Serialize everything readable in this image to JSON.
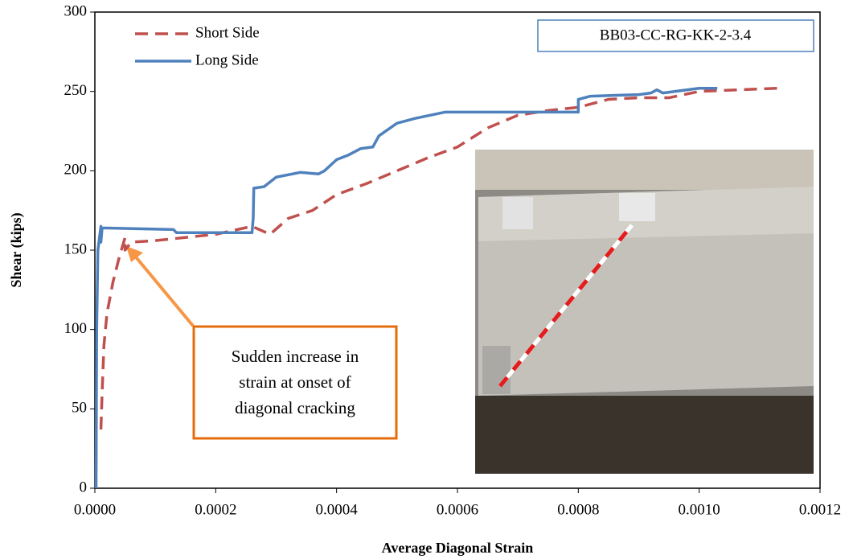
{
  "chart_data": {
    "type": "line",
    "x_label": "Average Diagonal Strain",
    "y_label": "Shear (kips)",
    "xlim": [
      0,
      0.0012
    ],
    "ylim": [
      0,
      300
    ],
    "xticks": [
      {
        "value": 0,
        "label": "0.0000"
      },
      {
        "value": 0.0002,
        "label": "0.0002"
      },
      {
        "value": 0.0004,
        "label": "0.0004"
      },
      {
        "value": 0.0006,
        "label": "0.0006"
      },
      {
        "value": 0.0008,
        "label": "0.0008"
      },
      {
        "value": 0.001,
        "label": "0.0010"
      },
      {
        "value": 0.0012,
        "label": "0.0012"
      }
    ],
    "yticks": [
      0,
      50,
      100,
      150,
      200,
      250,
      300
    ],
    "legend": "upper left",
    "specimen_label": "BB03-CC-RG-KK-2-3.4",
    "annotation": [
      "Sudden increase in",
      "strain at onset of",
      "diagonal cracking"
    ],
    "series": [
      {
        "name": "Short Side",
        "color": "#c0504d",
        "style": "dashed",
        "x": [
          1e-05,
          1.2e-05,
          1.5e-05,
          2e-05,
          3e-05,
          4e-05,
          5e-05,
          5e-05,
          6e-05,
          0.0001,
          0.0002,
          0.00026,
          0.00029,
          0.00032,
          0.00036,
          0.0004,
          0.00045,
          0.0005,
          0.00055,
          0.0006,
          0.00065,
          0.0007,
          0.00075,
          0.0008,
          0.00085,
          0.0009,
          0.00095,
          0.001,
          0.00113
        ],
        "values": [
          37,
          60,
          90,
          110,
          130,
          145,
          158,
          150,
          155,
          156,
          160,
          165,
          160,
          170,
          175,
          185,
          192,
          200,
          208,
          215,
          227,
          235,
          238,
          240,
          245,
          246,
          246,
          250,
          252
        ]
      },
      {
        "name": "Long Side",
        "color": "#4f81bd",
        "style": "solid",
        "x": [
          2e-06,
          3e-06,
          5e-06,
          1e-05,
          1e-05,
          1.2e-05,
          0.00013,
          0.000135,
          0.00026,
          0.000262,
          0.000263,
          0.00028,
          0.0003,
          0.00034,
          0.00037,
          0.00038,
          0.0004,
          0.00042,
          0.00044,
          0.00046,
          0.00047,
          0.0005,
          0.00053,
          0.00058,
          0.00079,
          0.0008,
          0.0008,
          0.00082,
          0.0009,
          0.00092,
          0.00093,
          0.00094,
          0.001,
          0.00103
        ],
        "values": [
          0,
          100,
          150,
          165,
          155,
          164,
          163,
          161,
          161,
          170,
          189,
          190,
          196,
          199,
          198,
          200,
          207,
          210,
          214,
          215,
          222,
          230,
          233,
          237,
          237,
          237,
          245,
          247,
          248,
          249,
          251,
          249,
          252,
          252
        ]
      }
    ]
  }
}
